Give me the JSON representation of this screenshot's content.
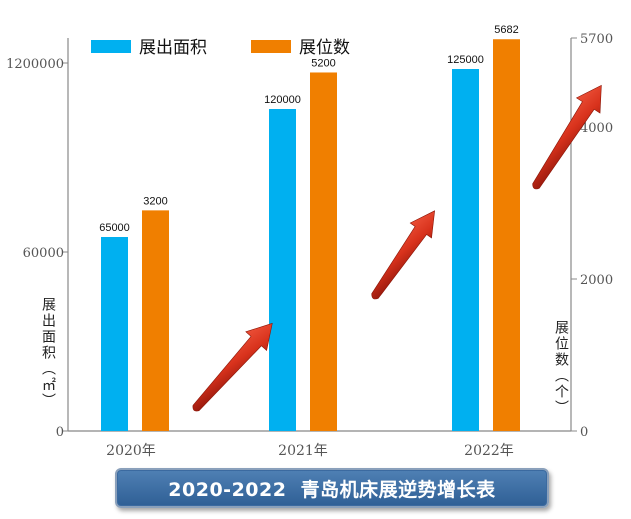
{
  "chart_data": {
    "type": "bar",
    "title": "2020-2022  青岛机床展逆势增长表",
    "categories": [
      "2020年",
      "2021年",
      "2022年"
    ],
    "series": [
      {
        "name": "展出面积",
        "axis": "left",
        "color": "#00b0f0",
        "values": [
          65000,
          120000,
          125000
        ],
        "labels": [
          "65000",
          "120000",
          "125000"
        ]
      },
      {
        "name": "展位数",
        "axis": "right",
        "color": "#f07f00",
        "values": [
          3200,
          5200,
          5682
        ],
        "labels": [
          "3200",
          "5200",
          "5682"
        ]
      }
    ],
    "y_left": {
      "label": "展出面积（㎡）",
      "ticks": [
        "1200000",
        "60000",
        "0"
      ]
    },
    "y_right": {
      "label": "展位数（个）",
      "ticks": [
        "5700",
        "4000",
        "2000",
        "0"
      ]
    },
    "legend": "top-left",
    "annotations": "red upward growth arrows between years"
  }
}
